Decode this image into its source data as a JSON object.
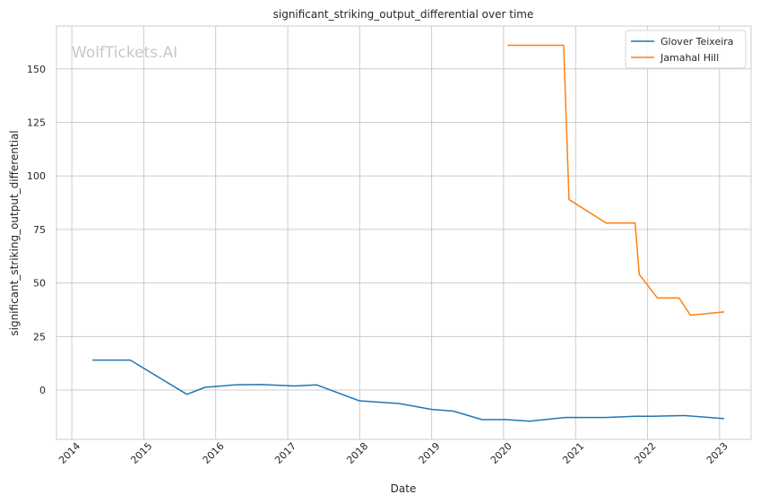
{
  "chart_data": {
    "type": "line",
    "title": "significant_striking_output_differential over time",
    "xlabel": "Date",
    "ylabel": "significant_striking_output_differential",
    "watermark": "WolfTickets.AI",
    "x_axis_type": "date",
    "xlim": [
      "2013-10-15",
      "2023-06-10"
    ],
    "ylim": [
      -23,
      170
    ],
    "x_ticks": [
      "2014",
      "2015",
      "2016",
      "2017",
      "2018",
      "2019",
      "2020",
      "2021",
      "2022",
      "2023"
    ],
    "y_ticks": [
      0,
      25,
      50,
      75,
      100,
      125,
      150
    ],
    "grid": true,
    "legend_position": "top-right",
    "series": [
      {
        "name": "Glover Teixeira",
        "color": "#1f77b4",
        "points": [
          [
            "2014-04-19",
            14
          ],
          [
            "2014-10-25",
            14
          ],
          [
            "2015-08-08",
            -2
          ],
          [
            "2015-11-07",
            1.3
          ],
          [
            "2016-04-16",
            2.5
          ],
          [
            "2016-08-20",
            2.6
          ],
          [
            "2017-02-04",
            1.9
          ],
          [
            "2017-05-28",
            2.4
          ],
          [
            "2017-12-30",
            -5
          ],
          [
            "2018-07-22",
            -6.3
          ],
          [
            "2019-01-01",
            -9
          ],
          [
            "2019-04-20",
            -9.8
          ],
          [
            "2019-09-14",
            -13.8
          ],
          [
            "2020-01-15",
            -13.8
          ],
          [
            "2020-05-13",
            -14.5
          ],
          [
            "2020-11-08",
            -12.8
          ],
          [
            "2021-06-01",
            -12.8
          ],
          [
            "2021-11-01",
            -12.2
          ],
          [
            "2022-01-20",
            -12.2
          ],
          [
            "2022-07-10",
            -11.9
          ],
          [
            "2023-01-21",
            -13.3
          ]
        ]
      },
      {
        "name": "Jamahal Hill",
        "color": "#ff7f0e",
        "points": [
          [
            "2020-01-25",
            161
          ],
          [
            "2020-11-01",
            161
          ],
          [
            "2020-11-28",
            89
          ],
          [
            "2021-06-05",
            78
          ],
          [
            "2021-10-30",
            78
          ],
          [
            "2021-11-20",
            54
          ],
          [
            "2022-02-20",
            43
          ],
          [
            "2022-06-10",
            43
          ],
          [
            "2022-08-06",
            35
          ],
          [
            "2023-01-21",
            36.5
          ]
        ]
      }
    ]
  }
}
